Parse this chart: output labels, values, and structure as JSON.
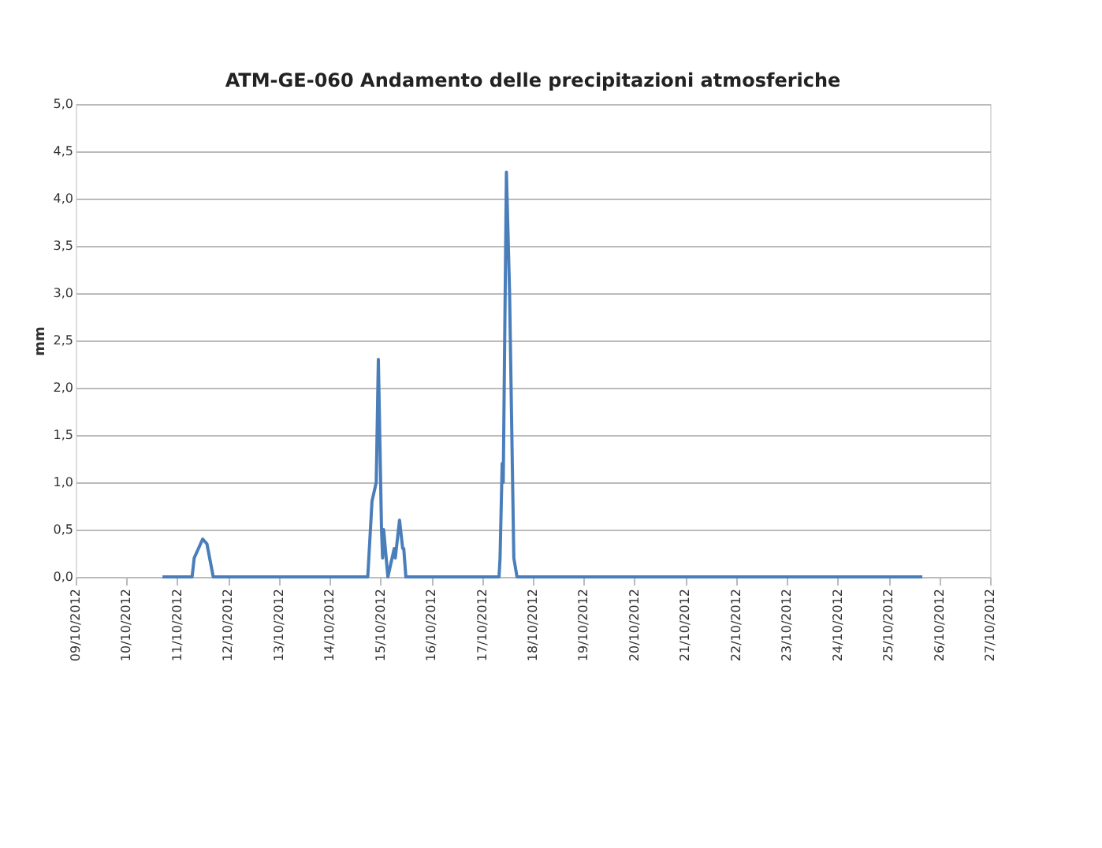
{
  "chart_data": {
    "type": "line",
    "title": "ATM-GE-060        Andamento delle precipitazioni atmosferiche",
    "ylabel": "mm",
    "x": [
      "2012-10-10T17:00",
      "2012-10-11T07:00",
      "2012-10-11T08:00",
      "2012-10-11T10:00",
      "2012-10-11T12:00",
      "2012-10-11T14:00",
      "2012-10-11T17:00",
      "2012-10-14T18:00",
      "2012-10-14T20:00",
      "2012-10-14T22:00",
      "2012-10-14T23:00",
      "2012-10-15T00:30",
      "2012-10-15T01:00",
      "2012-10-15T01:30",
      "2012-10-15T03:30",
      "2012-10-15T06:30",
      "2012-10-15T07:00",
      "2012-10-15T09:00",
      "2012-10-15T10:30",
      "2012-10-15T11:00",
      "2012-10-15T12:00",
      "2012-10-17T08:00",
      "2012-10-17T08:30",
      "2012-10-17T09:30",
      "2012-10-17T10:00",
      "2012-10-17T11:30",
      "2012-10-17T13:00",
      "2012-10-17T15:00",
      "2012-10-17T16:30",
      "2012-10-25T16:00"
    ],
    "series": [
      {
        "color": "#4a7ebb",
        "values": [
          0,
          0,
          0.2,
          0.3,
          0.4,
          0.35,
          0,
          0,
          0.8,
          1.0,
          2.3,
          0.5,
          0.2,
          0.5,
          0,
          0.3,
          0.2,
          0.6,
          0.3,
          0.3,
          0,
          0,
          0.2,
          1.2,
          1.0,
          4.28,
          3.0,
          0.2,
          0,
          0
        ]
      }
    ],
    "xlim": [
      "2012-10-09",
      "2012-10-27"
    ],
    "xticks": [
      {
        "value": "2012-10-09",
        "label": "09/10/2012"
      },
      {
        "value": "2012-10-10",
        "label": "10/10/2012"
      },
      {
        "value": "2012-10-11",
        "label": "11/10/2012"
      },
      {
        "value": "2012-10-12",
        "label": "12/10/2012"
      },
      {
        "value": "2012-10-13",
        "label": "13/10/2012"
      },
      {
        "value": "2012-10-14",
        "label": "14/10/2012"
      },
      {
        "value": "2012-10-15",
        "label": "15/10/2012"
      },
      {
        "value": "2012-10-16",
        "label": "16/10/2012"
      },
      {
        "value": "2012-10-17",
        "label": "17/10/2012"
      },
      {
        "value": "2012-10-18",
        "label": "18/10/2012"
      },
      {
        "value": "2012-10-19",
        "label": "19/10/2012"
      },
      {
        "value": "2012-10-20",
        "label": "20/10/2012"
      },
      {
        "value": "2012-10-21",
        "label": "21/10/2012"
      },
      {
        "value": "2012-10-22",
        "label": "22/10/2012"
      },
      {
        "value": "2012-10-23",
        "label": "23/10/2012"
      },
      {
        "value": "2012-10-24",
        "label": "24/10/2012"
      },
      {
        "value": "2012-10-25",
        "label": "25/10/2012"
      },
      {
        "value": "2012-10-26",
        "label": "26/10/2012"
      },
      {
        "value": "2012-10-27",
        "label": "27/10/2012"
      }
    ],
    "ylim": [
      0,
      5
    ],
    "yticks": [
      {
        "value": 0,
        "label": "0,0"
      },
      {
        "value": 0.5,
        "label": "0,5"
      },
      {
        "value": 1,
        "label": "1,0"
      },
      {
        "value": 1.5,
        "label": "1,5"
      },
      {
        "value": 2,
        "label": "2,0"
      },
      {
        "value": 2.5,
        "label": "2,5"
      },
      {
        "value": 3,
        "label": "3,0"
      },
      {
        "value": 3.5,
        "label": "3,5"
      },
      {
        "value": 4,
        "label": "4,0"
      },
      {
        "value": 4.5,
        "label": "4,5"
      },
      {
        "value": 5,
        "label": "5,0"
      }
    ],
    "grid": "y",
    "marker": "none",
    "line_style": "solid"
  }
}
